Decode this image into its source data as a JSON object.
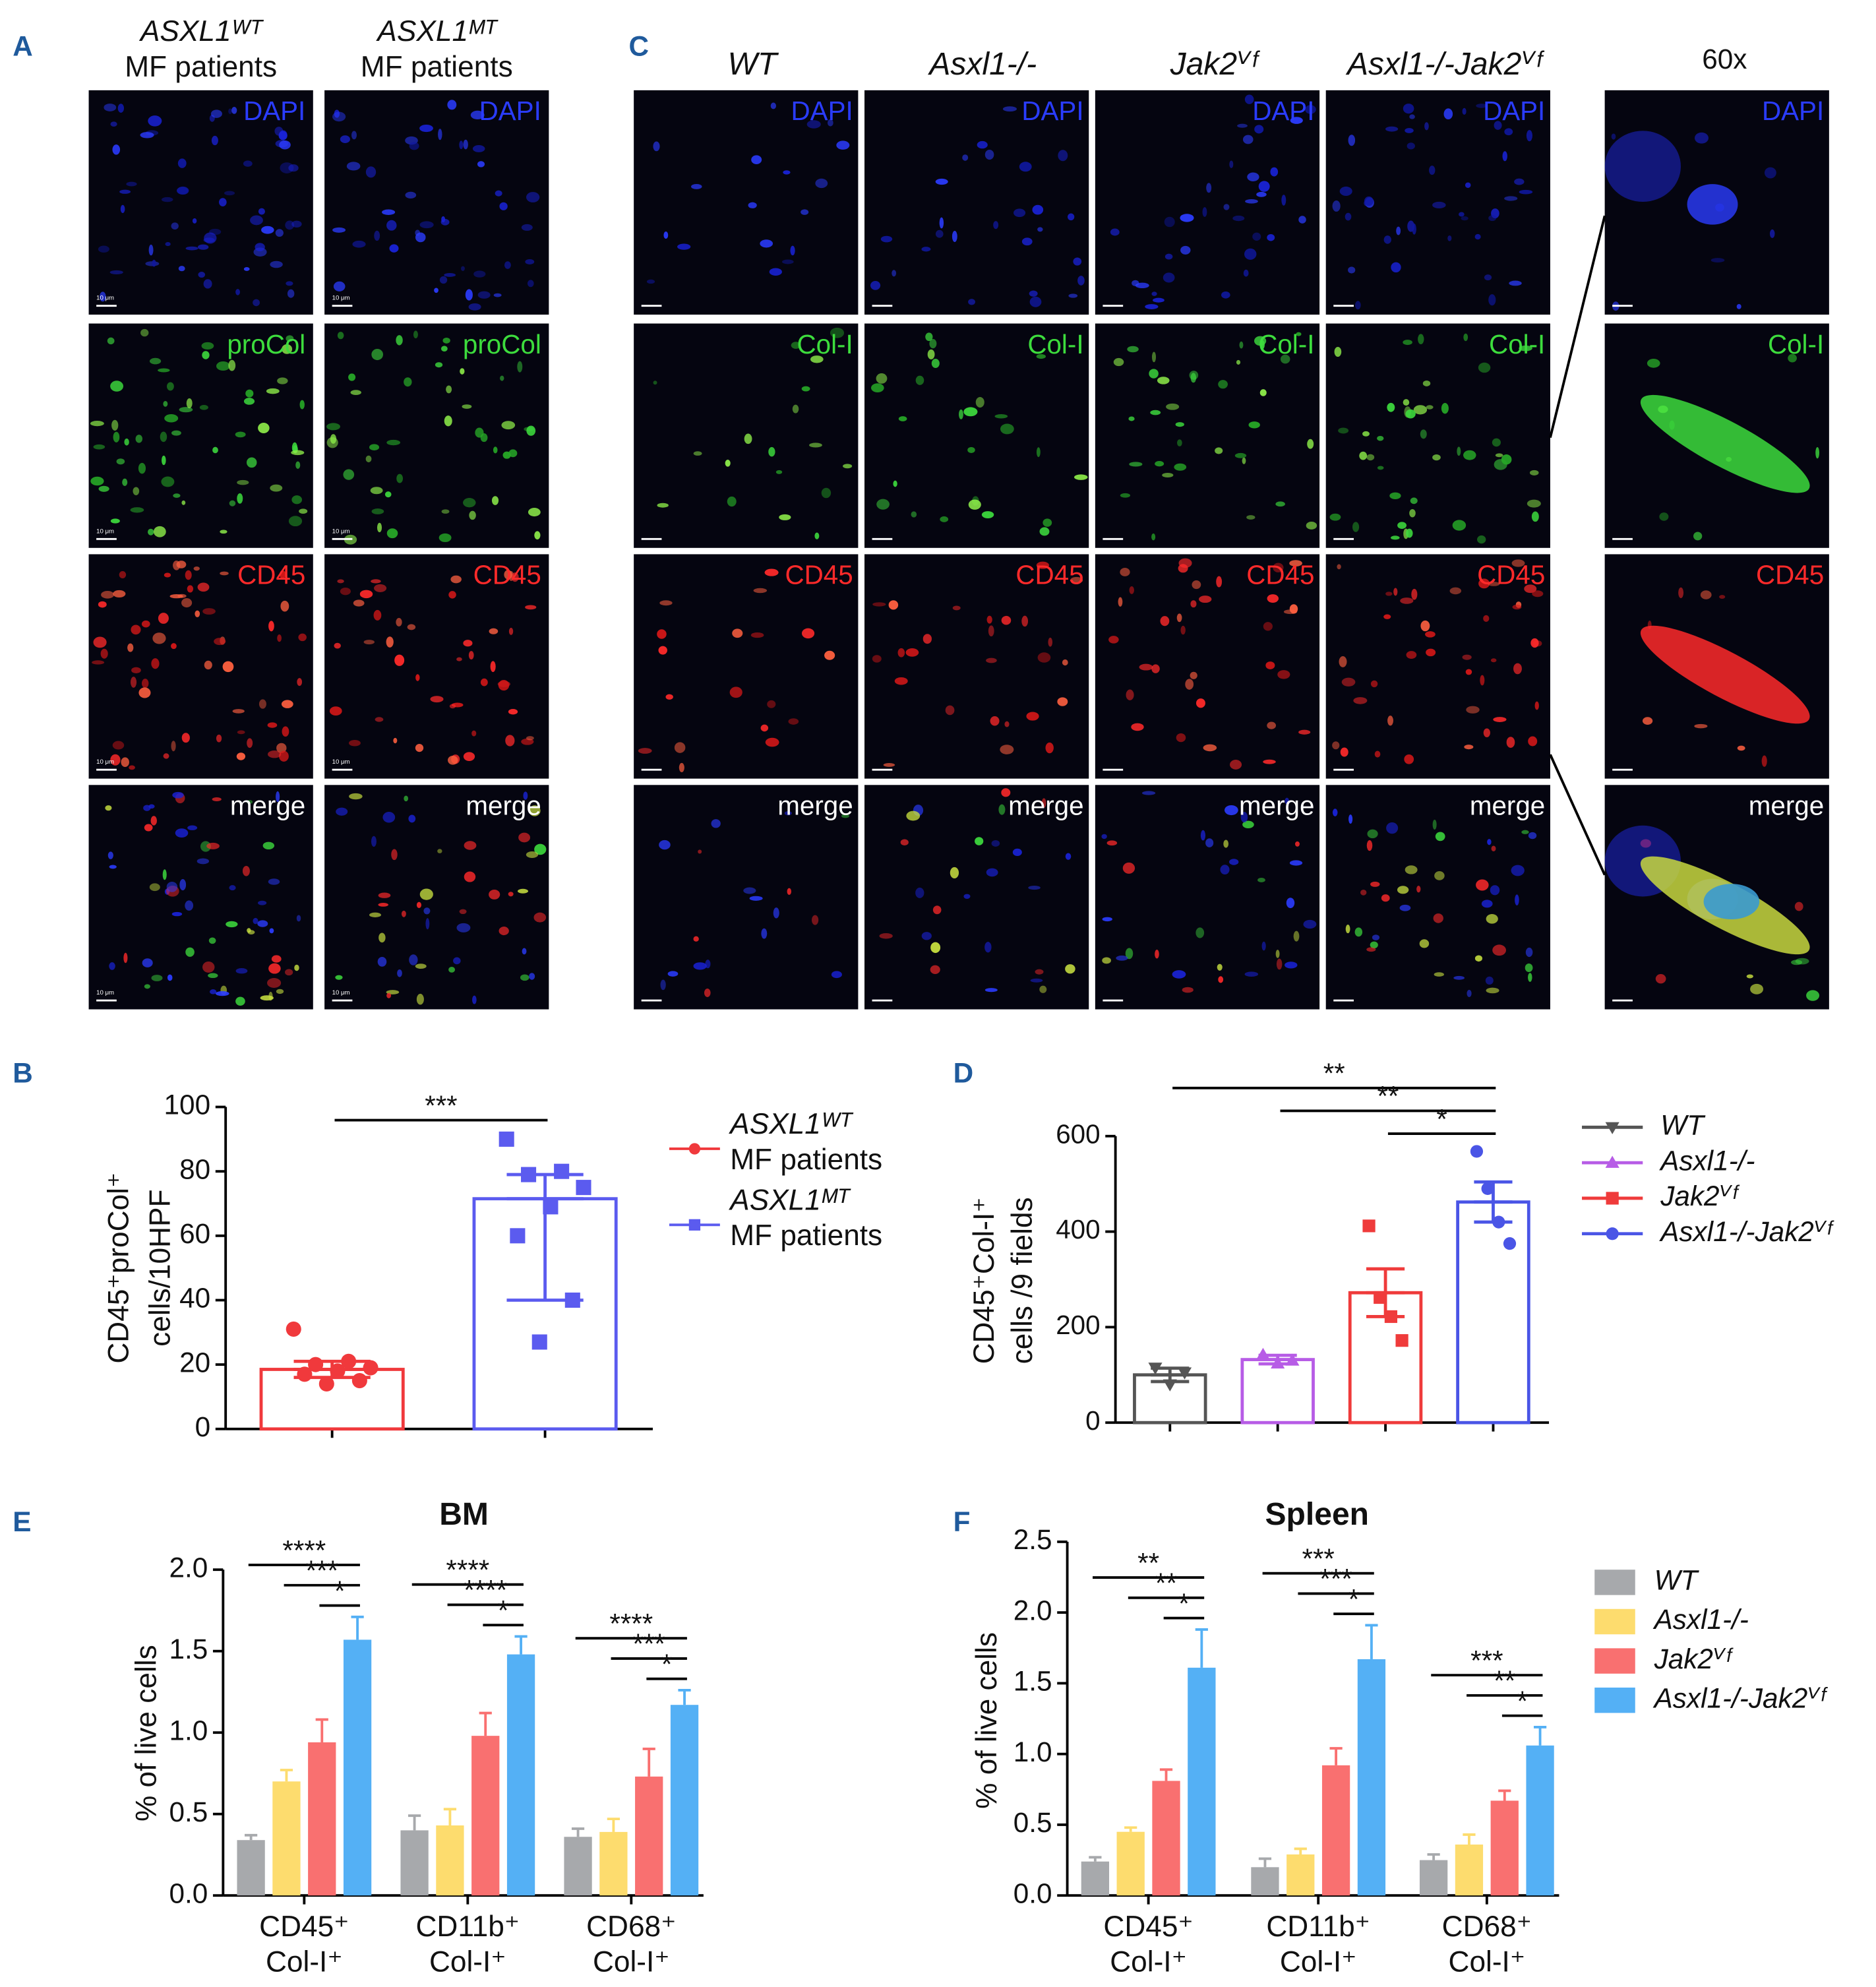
{
  "panel_labels": [
    "A",
    "B",
    "C",
    "D",
    "E",
    "F"
  ],
  "images": {
    "A": {
      "columns": [
        [
          "ASXL1ᵂᵀ",
          "MF patients"
        ],
        [
          "ASXL1ᴹᵀ",
          "MF patients"
        ]
      ],
      "rows": [
        "DAPI",
        "proCol",
        "CD45",
        "merge"
      ],
      "scale_bar": "10 μm"
    },
    "C": {
      "columns": [
        "WT",
        "Asxl1-/-",
        "Jak2ⱽᶠ",
        "Asxl1-/-Jak2ⱽᶠ"
      ],
      "zoom_column": "60x",
      "rows": [
        "DAPI",
        "Col-I",
        "CD45",
        "merge"
      ]
    }
  },
  "chart_data": [
    {
      "type": "dotplot",
      "ylabel": [
        "CD45⁺proCol⁺",
        "cells/10HPF"
      ],
      "ylim": [
        0,
        100
      ],
      "yticks": [
        0,
        20,
        40,
        60,
        80,
        100
      ],
      "series": [
        {
          "name": [
            "ASXL1ᵂᵀ",
            "MF patients"
          ],
          "color": "#f0393c",
          "marker": "circle",
          "value": 18.5,
          "error": 2.5,
          "points": [
            31,
            21,
            20,
            19,
            18,
            17,
            15,
            14
          ]
        },
        {
          "name": [
            "ASXL1ᴹᵀ",
            "MF patients"
          ],
          "color": "#5b5bef",
          "marker": "square",
          "value": 71.5,
          "error": [
            31.5,
            7.5
          ],
          "points": [
            90,
            80,
            79,
            75,
            69,
            60,
            40,
            27
          ]
        }
      ],
      "significance": [
        {
          "from": 0,
          "to": 1,
          "label": "***"
        }
      ]
    },
    {
      "type": "dotplot",
      "ylabel": [
        "CD45⁺Col-I⁺",
        "cells /9 fields"
      ],
      "ylim": [
        0,
        600
      ],
      "yticks": [
        0,
        200,
        400,
        600
      ],
      "series": [
        {
          "name": "WT",
          "color": "#555555",
          "marker": "triangle-down",
          "value": 100,
          "error": 14,
          "points": [
            115,
            105,
            80
          ]
        },
        {
          "name": "Asxl1-/-",
          "color": "#b75ce6",
          "marker": "triangle-up",
          "value": 132,
          "error": 9,
          "points": [
            142,
            130,
            124
          ]
        },
        {
          "name": "Jak2ⱽᶠ",
          "color": "#ef3b3b",
          "marker": "square",
          "value": 272,
          "error": 50,
          "points": [
            412,
            262,
            222,
            172
          ]
        },
        {
          "name": "Asxl1-/-Jak2ⱽᶠ",
          "color": "#4a55e6",
          "marker": "circle",
          "value": 462,
          "error": 42,
          "points": [
            568,
            490,
            420,
            375
          ]
        }
      ],
      "significance": [
        {
          "from": 0,
          "to": 3,
          "label": "**"
        },
        {
          "from": 1,
          "to": 3,
          "label": "**"
        },
        {
          "from": 2,
          "to": 3,
          "label": "*"
        }
      ]
    },
    {
      "type": "bar",
      "title": "BM",
      "ylabel": "% of live cells",
      "categories": [
        [
          "CD45⁺",
          "Col-I⁺"
        ],
        [
          "CD11b⁺",
          "Col-I⁺"
        ],
        [
          "CD68⁺",
          "Col-I⁺"
        ]
      ],
      "ylim": [
        0,
        2
      ],
      "yticks": [
        {
          "value": 0,
          "label": "0.0"
        },
        0.5,
        {
          "value": 1,
          "label": "1.0"
        },
        1.5,
        {
          "value": 2,
          "label": "2.0"
        }
      ],
      "series": [
        {
          "color": "#a7a9ac",
          "values": [
            0.34,
            0.4,
            0.36
          ],
          "errors": [
            0.03,
            0.09,
            0.05
          ]
        },
        {
          "color": "#fddc6e",
          "values": [
            0.7,
            0.43,
            0.39
          ],
          "errors": [
            0.07,
            0.1,
            0.08
          ]
        },
        {
          "color": "#f97070",
          "values": [
            0.94,
            0.98,
            0.73
          ],
          "errors": [
            0.14,
            0.14,
            0.17
          ]
        },
        {
          "color": "#54b0f5",
          "values": [
            1.57,
            1.48,
            1.17
          ],
          "errors": [
            0.14,
            0.11,
            0.09
          ]
        }
      ],
      "significance": [
        {
          "category": 0,
          "from": 0,
          "to": 3,
          "label": "****"
        },
        {
          "category": 0,
          "from": 1,
          "to": 3,
          "label": "***"
        },
        {
          "category": 0,
          "from": 2,
          "to": 3,
          "label": "*"
        },
        {
          "category": 1,
          "from": 0,
          "to": 3,
          "label": "****"
        },
        {
          "category": 1,
          "from": 1,
          "to": 3,
          "label": "****"
        },
        {
          "category": 1,
          "from": 2,
          "to": 3,
          "label": "*"
        },
        {
          "category": 2,
          "from": 0,
          "to": 3,
          "label": "****"
        },
        {
          "category": 2,
          "from": 1,
          "to": 3,
          "label": "***"
        },
        {
          "category": 2,
          "from": 2,
          "to": 3,
          "label": "*"
        }
      ]
    },
    {
      "type": "bar",
      "title": "Spleen",
      "ylabel": "% of live cells",
      "categories": [
        [
          "CD45⁺",
          "Col-I⁺"
        ],
        [
          "CD11b⁺",
          "Col-I⁺"
        ],
        [
          "CD68⁺",
          "Col-I⁺"
        ]
      ],
      "ylim": [
        0,
        2.5
      ],
      "yticks": [
        {
          "value": 0,
          "label": "0.0"
        },
        0.5,
        {
          "value": 1,
          "label": "1.0"
        },
        1.5,
        {
          "value": 2,
          "label": "2.0"
        },
        2.5
      ],
      "series": [
        {
          "name": "WT",
          "color": "#a7a9ac",
          "values": [
            0.24,
            0.2,
            0.25
          ],
          "errors": [
            0.03,
            0.06,
            0.04
          ]
        },
        {
          "name": "Asxl1-/-",
          "color": "#fddc6e",
          "values": [
            0.45,
            0.29,
            0.36
          ],
          "errors": [
            0.03,
            0.04,
            0.07
          ]
        },
        {
          "name": "Jak2ⱽᶠ",
          "color": "#f97070",
          "values": [
            0.81,
            0.92,
            0.67
          ],
          "errors": [
            0.08,
            0.12,
            0.07
          ]
        },
        {
          "name": "Asxl1-/-Jak2ⱽᶠ",
          "color": "#54b0f5",
          "values": [
            1.61,
            1.67,
            1.06
          ],
          "errors": [
            0.27,
            0.24,
            0.13
          ]
        }
      ],
      "significance": [
        {
          "category": 0,
          "from": 0,
          "to": 3,
          "label": "**"
        },
        {
          "category": 0,
          "from": 1,
          "to": 3,
          "label": "**"
        },
        {
          "category": 0,
          "from": 2,
          "to": 3,
          "label": "*"
        },
        {
          "category": 1,
          "from": 0,
          "to": 3,
          "label": "***"
        },
        {
          "category": 1,
          "from": 1,
          "to": 3,
          "label": "***"
        },
        {
          "category": 1,
          "from": 2,
          "to": 3,
          "label": "*"
        },
        {
          "category": 2,
          "from": 0,
          "to": 3,
          "label": "***"
        },
        {
          "category": 2,
          "from": 1,
          "to": 3,
          "label": "**"
        },
        {
          "category": 2,
          "from": 2,
          "to": 3,
          "label": "*"
        }
      ]
    }
  ]
}
